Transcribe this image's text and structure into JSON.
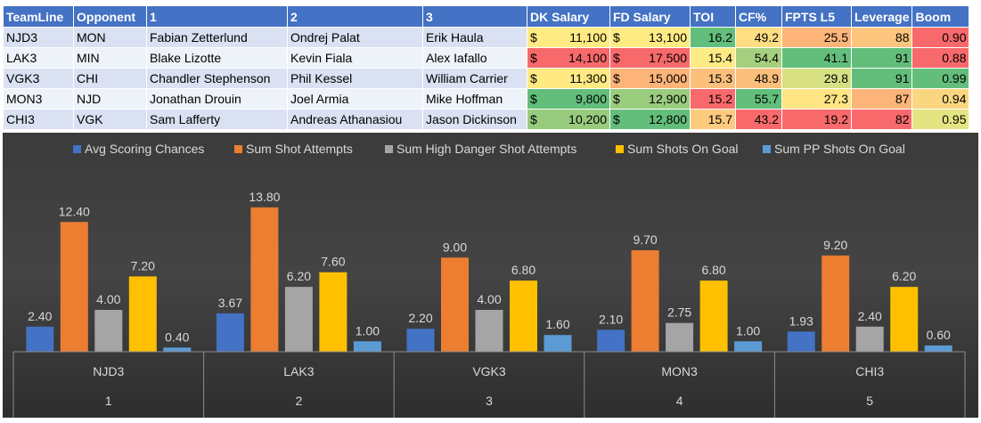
{
  "table": {
    "headers": [
      "TeamLine",
      "Opponent",
      "1",
      "2",
      "3",
      "DK Salary",
      "FD Salary",
      "TOI",
      "CF%",
      "FPTS L5",
      "Leverage",
      "Boom"
    ],
    "rows": [
      {
        "cells": [
          "NJD3",
          "MON",
          "Fabian Zetterlund",
          "Ondrej Palat",
          "Erik Haula",
          "11,100",
          "13,100",
          "16.2",
          "49.2",
          "25.5",
          "88",
          "0.90"
        ],
        "colors": [
          "",
          "",
          "",
          "",
          "",
          "#ffeb84",
          "#ffeb84",
          "#63be7b",
          "#ffdd82",
          "#fcb479",
          "#fdc47d",
          "#f8696b"
        ]
      },
      {
        "cells": [
          "LAK3",
          "MIN",
          "Blake Lizotte",
          "Kevin Fiala",
          "Alex Iafallo",
          "14,100",
          "17,500",
          "15.4",
          "54.4",
          "41.1",
          "91",
          "0.88"
        ],
        "colors": [
          "",
          "",
          "",
          "",
          "",
          "#f8696b",
          "#f8696b",
          "#ffeb84",
          "#a6d07f",
          "#63be7b",
          "#63be7b",
          "#f8696b"
        ]
      },
      {
        "cells": [
          "VGK3",
          "CHI",
          "Chandler Stephenson",
          "Phil Kessel",
          "William Carrier",
          "11,300",
          "15,000",
          "15.3",
          "48.9",
          "29.8",
          "91",
          "0.99"
        ],
        "colors": [
          "",
          "",
          "",
          "",
          "",
          "#fee983",
          "#fcb479",
          "#fdc07c",
          "#fcbf7b",
          "#d6df82",
          "#63be7b",
          "#63be7b"
        ]
      },
      {
        "cells": [
          "MON3",
          "NJD",
          "Jonathan Drouin",
          "Joel Armia",
          "Mike Hoffman",
          "9,800",
          "12,900",
          "15.2",
          "55.7",
          "27.3",
          "87",
          "0.94"
        ],
        "colors": [
          "",
          "",
          "",
          "",
          "",
          "#63be7b",
          "#9acc7e",
          "#f8696b",
          "#63be7b",
          "#ffe583",
          "#fcb479",
          "#fbd681"
        ]
      },
      {
        "cells": [
          "CHI3",
          "VGK",
          "Sam Lafferty",
          "Andreas Athanasiou",
          "Jason Dickinson",
          "10,200",
          "12,800",
          "15.7",
          "43.2",
          "19.2",
          "82",
          "0.95"
        ],
        "colors": [
          "",
          "",
          "",
          "",
          "",
          "#98cb7e",
          "#63be7b",
          "#fdca7e",
          "#f8696b",
          "#f8696b",
          "#f8696b",
          "#e5e483"
        ]
      }
    ]
  },
  "chart_data": {
    "type": "bar",
    "legend_position": "top",
    "categories": [
      "NJD3",
      "LAK3",
      "VGK3",
      "MON3",
      "CHI3"
    ],
    "category_sub": [
      "1",
      "2",
      "3",
      "4",
      "5"
    ],
    "ylim": [
      0,
      16
    ],
    "series": [
      {
        "name": "Avg Scoring Chances",
        "color": "#4472c4",
        "values": [
          2.4,
          3.67,
          2.2,
          2.1,
          1.93
        ]
      },
      {
        "name": "Sum Shot Attempts",
        "color": "#ed7d31",
        "values": [
          12.4,
          13.8,
          9.0,
          9.7,
          9.2
        ]
      },
      {
        "name": "Sum High Danger Shot Attempts",
        "color": "#a5a5a5",
        "values": [
          4.0,
          6.2,
          4.0,
          2.75,
          2.4
        ]
      },
      {
        "name": "Sum Shots On Goal",
        "color": "#ffc000",
        "values": [
          7.2,
          7.6,
          6.8,
          6.8,
          6.2
        ]
      },
      {
        "name": "Sum PP Shots On Goal",
        "color": "#5b9bd5",
        "values": [
          0.4,
          1.0,
          1.6,
          1.0,
          0.6
        ]
      }
    ]
  }
}
